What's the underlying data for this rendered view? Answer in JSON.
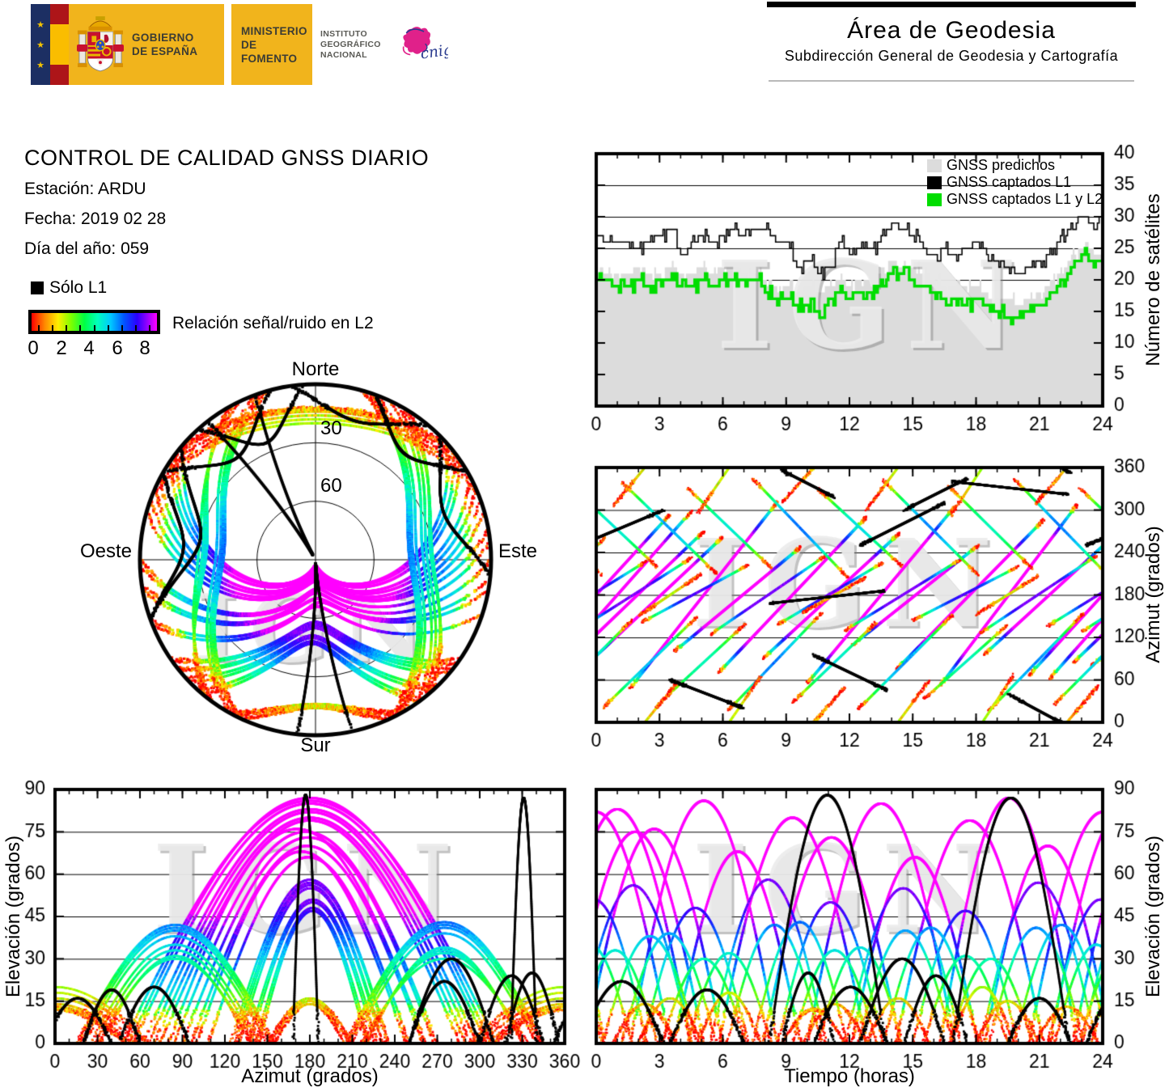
{
  "header": {
    "gobierno": [
      "GOBIERNO",
      "DE ESPAÑA"
    ],
    "ministerio": [
      "MINISTERIO",
      "DE FOMENTO"
    ],
    "instituto": [
      "INSTITUTO",
      "GEOGRÁFICO",
      "NACIONAL"
    ],
    "cnig": "cnig",
    "area_title": "Área de Geodesia",
    "area_subtitle": "Subdirección General de Geodesia y Cartografía"
  },
  "report": {
    "title": "CONTROL DE CALIDAD GNSS DIARIO",
    "station": "Estación: ARDU",
    "date": "Fecha: 2019 02 28",
    "doy": "Día del año: 059"
  },
  "legend": {
    "solo_l1": "Sólo L1",
    "colorbar_label": "Relación señal/ruido en L2",
    "colorbar_ticks": [
      "0",
      "2",
      "4",
      "6",
      "8"
    ],
    "colorbar_tick_values": [
      0,
      2,
      4,
      6,
      8
    ],
    "colorbar_range": [
      0,
      9
    ],
    "colormap": [
      {
        "v": 0,
        "c": "#ff0000"
      },
      {
        "v": 1,
        "c": "#ff8800"
      },
      {
        "v": 2,
        "c": "#ffee00"
      },
      {
        "v": 3,
        "c": "#7dff00"
      },
      {
        "v": 4,
        "c": "#00ff44"
      },
      {
        "v": 5,
        "c": "#00ffbb"
      },
      {
        "v": 6,
        "c": "#00c8ff"
      },
      {
        "v": 7,
        "c": "#0055ff"
      },
      {
        "v": 8,
        "c": "#2b00ff"
      },
      {
        "v": 8.8,
        "c": "#9900ff"
      },
      {
        "v": 9.5,
        "c": "#ff00ff"
      }
    ]
  },
  "skyplot": {
    "north": "Norte",
    "south": "Sur",
    "east": "Este",
    "west": "Oeste",
    "ring_label_30": "30",
    "ring_label_60": "60",
    "elevation_rings_deg": [
      30,
      60
    ]
  },
  "watermark": "IGN",
  "colors": {
    "predicted_fill": "#dcdcdc",
    "l1_line": "#000000",
    "l1l2_line": "#00dd00",
    "axis": "#000000",
    "flag_red": "#ad1519",
    "flag_yellow": "#fabd00",
    "box_yellow": "#f1b41c",
    "eu_navy": "#1c2f63",
    "cnig_pink": "#e0218a",
    "cnig_blue": "#2a3b8f"
  },
  "chart_data": [
    {
      "id": "sat_count",
      "type": "line",
      "title": "",
      "xlabel": "",
      "ylabel": "Número de satélites",
      "xlim": [
        0,
        24
      ],
      "ylim": [
        0,
        40
      ],
      "xticks": [
        0,
        3,
        6,
        9,
        12,
        15,
        18,
        21,
        24
      ],
      "yticks": [
        0,
        5,
        10,
        15,
        20,
        25,
        30,
        35,
        40
      ],
      "x_minor_step": 1,
      "grid": "horizontal",
      "legend_position": "top-right-inside",
      "legend": [
        {
          "label": "GNSS predichos",
          "color": "#dcdcdc",
          "style": "area"
        },
        {
          "label": "GNSS captados L1",
          "color": "#000000",
          "style": "step-line"
        },
        {
          "label": "GNSS captados L1 y L2",
          "color": "#00dd00",
          "style": "step-line"
        }
      ],
      "x_step_hours": 0.5,
      "series": [
        {
          "name": "GNSS predichos",
          "style": "area",
          "values": [
            22,
            21,
            21,
            21,
            22,
            21,
            21,
            22,
            21,
            21,
            22,
            21,
            22,
            22,
            21,
            21,
            20,
            19,
            19,
            18,
            19,
            18,
            19,
            20,
            19,
            20,
            20,
            22,
            23,
            22,
            22,
            21,
            20,
            19,
            19,
            19,
            19,
            18,
            17,
            17,
            16,
            17,
            18,
            20,
            22,
            24,
            25,
            25,
            24
          ]
        },
        {
          "name": "GNSS captados L1",
          "style": "step",
          "values": [
            27,
            26,
            26,
            26,
            25,
            26,
            27,
            28,
            24,
            26,
            27,
            26,
            27,
            28,
            27,
            28,
            28,
            26,
            26,
            22,
            23,
            21,
            22,
            26,
            24,
            25,
            25,
            27,
            29,
            28,
            27,
            25,
            24,
            25,
            24,
            25,
            26,
            24,
            23,
            22,
            21,
            22,
            23,
            25,
            27,
            29,
            30,
            29,
            30
          ]
        },
        {
          "name": "GNSS captados L1 y L2",
          "style": "step",
          "values": [
            20,
            20,
            19,
            19,
            20,
            19,
            20,
            20,
            19,
            19,
            20,
            19,
            20,
            20,
            20,
            20,
            18,
            17,
            17,
            16,
            16,
            15,
            17,
            18,
            17,
            18,
            18,
            20,
            21,
            21,
            20,
            19,
            18,
            17,
            17,
            16,
            17,
            16,
            15,
            14,
            14,
            15,
            16,
            18,
            20,
            22,
            24,
            23,
            23
          ]
        }
      ]
    },
    {
      "id": "skyplot",
      "type": "scatter",
      "projection": "polar",
      "title": "",
      "rings_elevation_deg": [
        30,
        60
      ],
      "cardinal_labels": [
        "Norte",
        "Este",
        "Sur",
        "Oeste"
      ],
      "color_encoding": "Relación señal/ruido en L2 (colormap), negro = sólo L1",
      "tracks_source": "satellite_passes"
    },
    {
      "id": "azimuth_vs_time",
      "type": "scatter",
      "xlabel": "",
      "ylabel": "Azimut (grados)",
      "xlim": [
        0,
        24
      ],
      "ylim": [
        0,
        360
      ],
      "xticks": [
        0,
        3,
        6,
        9,
        12,
        15,
        18,
        21,
        24
      ],
      "yticks": [
        0,
        60,
        120,
        180,
        240,
        300,
        360
      ],
      "x_minor_step": 1,
      "grid": "horizontal",
      "tracks_source": "satellite_passes"
    },
    {
      "id": "elevation_vs_azimuth",
      "type": "scatter",
      "xlabel": "Azimut (grados)",
      "ylabel": "Elevación (grados)",
      "xlim": [
        0,
        360
      ],
      "ylim": [
        0,
        90
      ],
      "xticks": [
        0,
        30,
        60,
        90,
        120,
        150,
        180,
        210,
        240,
        270,
        300,
        330,
        360
      ],
      "yticks": [
        0,
        15,
        30,
        45,
        60,
        75,
        90
      ],
      "x_minor_step": 10,
      "grid": "horizontal",
      "tracks_source": "satellite_passes"
    },
    {
      "id": "elevation_vs_time",
      "type": "scatter",
      "xlabel": "Tiempo (horas)",
      "ylabel": "Elevación (grados)",
      "xlim": [
        0,
        24
      ],
      "ylim": [
        0,
        90
      ],
      "xticks": [
        0,
        3,
        6,
        9,
        12,
        15,
        18,
        21,
        24
      ],
      "yticks": [
        0,
        15,
        30,
        45,
        60,
        75,
        90
      ],
      "x_minor_step": 1,
      "grid": "horizontal",
      "tracks_source": "satellite_passes"
    }
  ],
  "satellite_passes": {
    "format": [
      "t0_hours",
      "duration_hours",
      "el_max_deg",
      "az_rise_deg",
      "az_set_deg",
      "snr_offset",
      "l1_only"
    ],
    "passes": [
      [
        -2.5,
        7,
        83,
        62,
        298,
        3,
        0
      ],
      [
        -0.5,
        6.5,
        76,
        80,
        262,
        3,
        0
      ],
      [
        1.6,
        7,
        86,
        48,
        312,
        3,
        0
      ],
      [
        3.7,
        6,
        68,
        100,
        248,
        3,
        0
      ],
      [
        5.8,
        7,
        80,
        70,
        290,
        3,
        0
      ],
      [
        7.9,
        6.5,
        73,
        90,
        268,
        3,
        0
      ],
      [
        10,
        7,
        85,
        55,
        305,
        3,
        0
      ],
      [
        12.1,
        6,
        66,
        108,
        250,
        3,
        0
      ],
      [
        14.2,
        7,
        79,
        74,
        286,
        3,
        0
      ],
      [
        16.3,
        6.5,
        87,
        52,
        308,
        3,
        0
      ],
      [
        18.4,
        6,
        70,
        96,
        260,
        3,
        0
      ],
      [
        20.5,
        7,
        82,
        66,
        294,
        3,
        0
      ],
      [
        22.6,
        6.5,
        75,
        84,
        270,
        3,
        0
      ],
      [
        -1,
        5.5,
        56,
        128,
        232,
        1.6,
        0
      ],
      [
        2.2,
        5,
        48,
        142,
        222,
        1.6,
        0
      ],
      [
        5.4,
        5.5,
        58,
        124,
        236,
        1.6,
        0
      ],
      [
        8.6,
        5,
        50,
        138,
        226,
        1.6,
        0
      ],
      [
        11.8,
        5.5,
        55,
        130,
        231,
        1.6,
        0
      ],
      [
        15,
        5,
        47,
        144,
        220,
        1.6,
        0
      ],
      [
        18.2,
        5.5,
        57,
        126,
        235,
        1.6,
        0
      ],
      [
        21.4,
        5,
        51,
        136,
        228,
        1.6,
        0
      ],
      [
        0.3,
        4.5,
        38,
        20,
        150,
        0.8,
        0
      ],
      [
        3.1,
        4,
        30,
        30,
        140,
        0.8,
        0
      ],
      [
        6.2,
        4.5,
        42,
        15,
        155,
        0.8,
        0
      ],
      [
        9.3,
        4,
        33,
        28,
        142,
        0.8,
        0
      ],
      [
        12.4,
        4.5,
        40,
        18,
        152,
        0.8,
        0
      ],
      [
        15.5,
        4,
        31,
        32,
        138,
        0.8,
        0
      ],
      [
        18.6,
        4.5,
        41,
        16,
        154,
        0.8,
        0
      ],
      [
        21.7,
        4,
        35,
        25,
        145,
        0.8,
        0
      ],
      [
        1.2,
        4.5,
        39,
        340,
        210,
        0.8,
        0
      ],
      [
        4.3,
        4,
        32,
        332,
        218,
        0.8,
        0
      ],
      [
        7.4,
        4.5,
        43,
        345,
        205,
        0.8,
        0
      ],
      [
        10.5,
        4,
        34,
        330,
        220,
        0.8,
        0
      ],
      [
        13.6,
        4.5,
        41,
        342,
        208,
        0.8,
        0
      ],
      [
        16.7,
        4,
        30,
        334,
        216,
        0.8,
        0
      ],
      [
        19.8,
        4.5,
        42,
        344,
        206,
        0.8,
        0
      ],
      [
        22.9,
        4,
        33,
        331,
        219,
        0.8,
        0
      ],
      [
        0.8,
        3,
        14,
        305,
        415,
        0,
        0
      ],
      [
        4.8,
        3,
        18,
        295,
        425,
        0,
        0
      ],
      [
        8.8,
        3,
        12,
        310,
        410,
        0,
        0
      ],
      [
        12.8,
        3,
        16,
        300,
        420,
        0,
        0
      ],
      [
        16.8,
        3,
        20,
        292,
        428,
        0,
        0
      ],
      [
        20.8,
        3,
        13,
        308,
        412,
        0,
        0
      ],
      [
        2,
        3,
        16,
        150,
        210,
        0,
        0
      ],
      [
        9.8,
        3,
        14,
        155,
        205,
        0,
        0
      ],
      [
        18,
        3,
        15,
        152,
        208,
        0,
        0
      ],
      [
        8.2,
        5.5,
        88,
        168,
        186,
        0,
        1
      ],
      [
        16.9,
        5.5,
        87,
        340,
        322,
        0,
        1
      ],
      [
        3.5,
        3.5,
        19,
        60,
        20,
        0,
        1
      ],
      [
        -0.8,
        4,
        22,
        250,
        300,
        0,
        1
      ],
      [
        12.5,
        4,
        30,
        250,
        310,
        0,
        1
      ],
      [
        19.5,
        3,
        16,
        40,
        -8,
        0,
        1
      ],
      [
        10.3,
        3.5,
        20,
        95,
        45,
        0,
        1
      ],
      [
        8.8,
        2.5,
        25,
        356,
        318,
        0,
        1
      ],
      [
        14.6,
        3,
        24,
        300,
        345,
        0,
        1
      ]
    ]
  },
  "render": {
    "seed": 20190228,
    "pts_per_hour": 95,
    "substeps": 6,
    "jitter_amp": 1
  }
}
